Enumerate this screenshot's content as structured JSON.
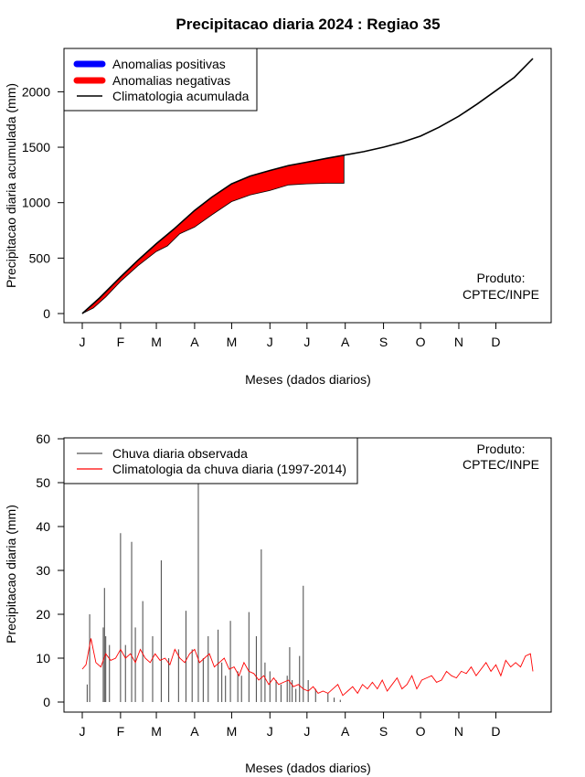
{
  "figure_title": "Precipitacao diaria 2024 : Regiao 35",
  "colors": {
    "positive": "#0000ff",
    "negative": "#ff0000",
    "climatology": "#000000",
    "observed_bars": "#555555",
    "daily_climatology": "#ff0000"
  },
  "chart_data": [
    {
      "type": "area",
      "title": "",
      "xlabel": "Meses (dados diarios)",
      "ylabel": "Precipitacao diaria acumulada (mm)",
      "x_tick_labels": [
        "J",
        "F",
        "M",
        "A",
        "M",
        "J",
        "J",
        "A",
        "S",
        "O",
        "N",
        "D"
      ],
      "x_tick_days": [
        1,
        32,
        61,
        92,
        122,
        153,
        183,
        214,
        245,
        275,
        306,
        336
      ],
      "xlim": [
        1,
        366
      ],
      "ylim": [
        0,
        2300
      ],
      "y_ticks": [
        0,
        500,
        1000,
        1500,
        2000
      ],
      "legend": {
        "placement": "top-left",
        "entries": [
          "Anomalias positivas",
          "Anomalias negativas",
          "Climatologia acumulada"
        ]
      },
      "annotation": [
        "Produto:",
        "CPTEC/INPE"
      ],
      "climatology_accumulated": {
        "day": [
          1,
          15,
          32,
          46,
          61,
          75,
          92,
          106,
          122,
          137,
          153,
          168,
          183,
          199,
          214,
          229,
          245,
          260,
          275,
          290,
          306,
          321,
          336,
          351,
          366
        ],
        "value": [
          0,
          140,
          330,
          480,
          630,
          760,
          930,
          1050,
          1170,
          1240,
          1290,
          1335,
          1365,
          1400,
          1430,
          1460,
          1500,
          1545,
          1600,
          1680,
          1780,
          1890,
          2010,
          2130,
          2300
        ]
      },
      "observed_accumulated": {
        "day": [
          1,
          10,
          20,
          32,
          46,
          61,
          70,
          80,
          92,
          106,
          122,
          137,
          153,
          168,
          183,
          199,
          213
        ],
        "value": [
          0,
          50,
          150,
          290,
          430,
          560,
          610,
          720,
          780,
          890,
          1010,
          1070,
          1110,
          1160,
          1170,
          1175,
          1175
        ]
      }
    },
    {
      "type": "bar",
      "title": "",
      "xlabel": "Meses (dados diarios)",
      "ylabel": "Precipitacao diaria (mm)",
      "x_tick_labels": [
        "J",
        "F",
        "M",
        "A",
        "M",
        "J",
        "J",
        "A",
        "S",
        "O",
        "N",
        "D"
      ],
      "x_tick_days": [
        1,
        32,
        61,
        92,
        122,
        153,
        183,
        214,
        245,
        275,
        306,
        336
      ],
      "xlim": [
        1,
        366
      ],
      "ylim": [
        0,
        60
      ],
      "y_ticks": [
        0,
        10,
        20,
        30,
        40,
        50,
        60
      ],
      "legend": {
        "placement": "top-left",
        "entries": [
          "Chuva diaria observada",
          "Climatologia da chuva diaria (1997-2014)"
        ]
      },
      "annotation": [
        "Produto:",
        "CPTEC/INPE"
      ],
      "observed_daily_peaks": {
        "day": [
          5,
          7,
          18,
          19,
          20,
          23,
          32,
          36,
          41,
          44,
          50,
          58,
          65,
          71,
          79,
          85,
          90,
          95,
          99,
          103,
          111,
          114,
          117,
          121,
          127,
          130,
          136,
          142,
          146,
          149,
          153,
          158,
          162,
          167,
          169,
          171,
          174,
          177,
          180,
          184,
          190,
          200,
          205,
          210
        ],
        "value": [
          4,
          20,
          17,
          26,
          15,
          13,
          38.5,
          13,
          36.5,
          17,
          23,
          15,
          32.3,
          10,
          12,
          20.8,
          12,
          50,
          10,
          15,
          16.5,
          9,
          6,
          18.5,
          7,
          6,
          20.5,
          15,
          34.8,
          9,
          7,
          5,
          4,
          6,
          12.5,
          5,
          3,
          10.5,
          26.5,
          5,
          3,
          2,
          1,
          0.5
        ]
      },
      "daily_climatology": {
        "day": [
          1,
          4,
          8,
          12,
          16,
          20,
          24,
          28,
          32,
          36,
          40,
          44,
          48,
          52,
          56,
          60,
          64,
          68,
          72,
          76,
          80,
          84,
          88,
          92,
          96,
          100,
          104,
          108,
          112,
          116,
          120,
          124,
          128,
          132,
          136,
          140,
          144,
          148,
          152,
          156,
          160,
          164,
          168,
          172,
          176,
          180,
          184,
          188,
          192,
          196,
          200,
          204,
          208,
          212,
          216,
          220,
          224,
          228,
          232,
          236,
          240,
          244,
          248,
          252,
          256,
          260,
          264,
          268,
          272,
          276,
          280,
          284,
          288,
          292,
          296,
          300,
          304,
          308,
          312,
          316,
          320,
          324,
          328,
          332,
          336,
          340,
          344,
          348,
          352,
          356,
          360,
          364,
          366
        ],
        "value": [
          7.5,
          8.5,
          14.5,
          9,
          8,
          11,
          9.5,
          10,
          12,
          10,
          11,
          9,
          12,
          10,
          9,
          11,
          9.5,
          10,
          8.5,
          12,
          10,
          9,
          11,
          12,
          9,
          10,
          11,
          8,
          9,
          10,
          7.5,
          8,
          6,
          9,
          7,
          6.5,
          5,
          6,
          4,
          5.5,
          4,
          4.5,
          5,
          3.5,
          4,
          3,
          2.5,
          3.5,
          2,
          2.5,
          2,
          3,
          4,
          1.5,
          2.5,
          3.5,
          2,
          4,
          3,
          4.5,
          3,
          5,
          2.5,
          4,
          5.5,
          3,
          4,
          6,
          3,
          5,
          5.5,
          6,
          4.5,
          5,
          7,
          6,
          5.5,
          7,
          6.5,
          8,
          6,
          7.5,
          9,
          7,
          8.5,
          6,
          9.5,
          8,
          9,
          8,
          10.5,
          11,
          7
        ]
      }
    }
  ]
}
